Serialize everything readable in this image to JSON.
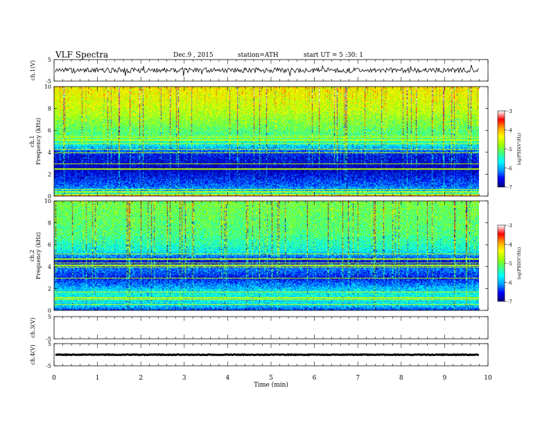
{
  "header": {
    "title": "VLF Spectra",
    "date": "Dec.9 , 2015",
    "station": "station=ATH",
    "start": "start UT = 5 :30: 1"
  },
  "chart_data": {
    "type": "heatmap",
    "title": "VLF Spectra",
    "xlabel": "Time (min)",
    "xlim": [
      0,
      10
    ],
    "x_ticks": [
      0,
      1,
      2,
      3,
      4,
      5,
      6,
      7,
      8,
      9,
      10
    ],
    "data_end_min": 9.8,
    "colormap": [
      "#000080",
      "#0000ff",
      "#00a0ff",
      "#00ffff",
      "#40ff80",
      "#a0ff00",
      "#ffff00",
      "#ffa000",
      "#ff0000",
      "#ffffff"
    ],
    "panels": [
      {
        "name": "ch.1(V)",
        "type": "line",
        "ylabel": "ch.1(V)",
        "ylim": [
          -5,
          5
        ],
        "y_ticks": [
          5,
          -5
        ],
        "trace_level": 0,
        "trace_amplitude": 1.2,
        "trace_color": "#000000"
      },
      {
        "name": "ch.1 Frequency",
        "type": "heatmap",
        "ylabel_top": "ch.1",
        "ylabel": "Frequency (kHz)",
        "ylim": [
          0,
          10
        ],
        "y_ticks": [
          0,
          2,
          4,
          6,
          8,
          10
        ],
        "log_psd_min": -7,
        "log_psd_max": -3,
        "colorbar_label": "log(PSD(V²/Hz)",
        "colorbar_ticks": [
          -3,
          -4,
          -5,
          -6,
          -7
        ],
        "band_profile": [
          {
            "f": 0,
            "v": -3.2
          },
          {
            "f": 0.3,
            "v": -5.8
          },
          {
            "f": 1,
            "v": -6.3
          },
          {
            "f": 2.5,
            "v": -6.8
          },
          {
            "f": 3.8,
            "v": -6.6
          },
          {
            "f": 4.4,
            "v": -6.0
          },
          {
            "f": 5,
            "v": -5.4
          },
          {
            "f": 6.5,
            "v": -5.0
          },
          {
            "f": 8,
            "v": -4.6
          },
          {
            "f": 10,
            "v": -4.3
          }
        ]
      },
      {
        "name": "ch.2 Frequency",
        "type": "heatmap",
        "ylabel_top": "ch.2",
        "ylabel": "Frequency (kHz)",
        "ylim": [
          0,
          10
        ],
        "y_ticks": [
          0,
          2,
          4,
          6,
          8,
          10
        ],
        "log_psd_min": -7,
        "log_psd_max": -3,
        "colorbar_label": "log(PSD(V²/Hz)",
        "colorbar_ticks": [
          -3,
          -4,
          -5,
          -6,
          -7
        ],
        "band_profile": [
          {
            "f": 0,
            "v": -6.5
          },
          {
            "f": 0.5,
            "v": -5.8
          },
          {
            "f": 1.5,
            "v": -5.6
          },
          {
            "f": 3,
            "v": -6.6
          },
          {
            "f": 3.8,
            "v": -6.2
          },
          {
            "f": 4.5,
            "v": -6.7
          },
          {
            "f": 5.5,
            "v": -5.6
          },
          {
            "f": 7,
            "v": -5.2
          },
          {
            "f": 10,
            "v": -5.0
          }
        ]
      },
      {
        "name": "ch.3(V)",
        "type": "line",
        "ylabel": "ch.3(V)",
        "ylim": [
          -5,
          5
        ],
        "y_ticks": [
          5,
          -5
        ],
        "trace_level": null,
        "trace_amplitude": 0,
        "trace_color": "#000000"
      },
      {
        "name": "ch.4(V)",
        "type": "line",
        "ylabel": "ch.4(V)",
        "ylim": [
          -5,
          5
        ],
        "y_ticks": [
          5,
          -5
        ],
        "trace_level": 0,
        "trace_amplitude": 0.15,
        "trace_color": "#000000"
      }
    ]
  }
}
